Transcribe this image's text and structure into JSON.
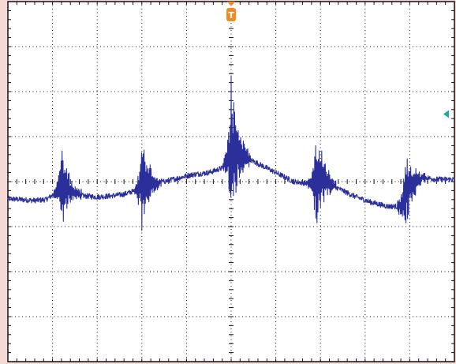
{
  "scope": {
    "frame_color": "#f5d9d4",
    "grid_color": "#111111",
    "trace_color": "#2b2f9a",
    "trigger_color": "#f08a24",
    "level_marker_color": "#22a6a6",
    "background": "#ffffff",
    "trigger_label": "T"
  },
  "chart_data": {
    "type": "line",
    "title": "",
    "xlabel": "",
    "ylabel": "",
    "x_divisions": 10,
    "y_divisions": 8,
    "xlim": [
      0,
      10
    ],
    "ylim": [
      -4,
      4
    ],
    "baseline_div": -0.3,
    "bursts": [
      {
        "x_div": 1.2,
        "amplitude_div": 0.9
      },
      {
        "x_div": 3.0,
        "amplitude_div": 1.0
      },
      {
        "x_div": 5.0,
        "amplitude_div": 1.5
      },
      {
        "x_div": 6.9,
        "amplitude_div": 1.1
      },
      {
        "x_div": 8.9,
        "amplitude_div": 0.9
      }
    ],
    "trigger_x_div": 5.0,
    "trigger_level_div": 1.5,
    "series": [
      {
        "values": [
          [
            0.0,
            -0.38
          ],
          [
            0.3,
            -0.4
          ],
          [
            0.6,
            -0.42
          ],
          [
            0.85,
            -0.4
          ],
          [
            1.0,
            -0.3
          ],
          [
            1.2,
            -0.1
          ],
          [
            1.4,
            -0.2
          ],
          [
            1.7,
            -0.32
          ],
          [
            2.0,
            -0.34
          ],
          [
            2.3,
            -0.32
          ],
          [
            2.6,
            -0.28
          ],
          [
            2.85,
            -0.2
          ],
          [
            3.0,
            -0.05
          ],
          [
            3.3,
            -0.05
          ],
          [
            3.7,
            0.05
          ],
          [
            4.1,
            0.15
          ],
          [
            4.5,
            0.2
          ],
          [
            4.8,
            0.3
          ],
          [
            5.0,
            0.7
          ],
          [
            5.2,
            0.6
          ],
          [
            5.6,
            0.4
          ],
          [
            6.0,
            0.2
          ],
          [
            6.4,
            0.0
          ],
          [
            6.8,
            -0.05
          ],
          [
            7.0,
            0.1
          ],
          [
            7.3,
            -0.1
          ],
          [
            7.7,
            -0.3
          ],
          [
            8.1,
            -0.45
          ],
          [
            8.5,
            -0.55
          ],
          [
            8.8,
            -0.55
          ],
          [
            9.0,
            -0.1
          ],
          [
            9.3,
            0.1
          ],
          [
            9.6,
            0.05
          ],
          [
            10.0,
            0.05
          ]
        ]
      }
    ]
  }
}
